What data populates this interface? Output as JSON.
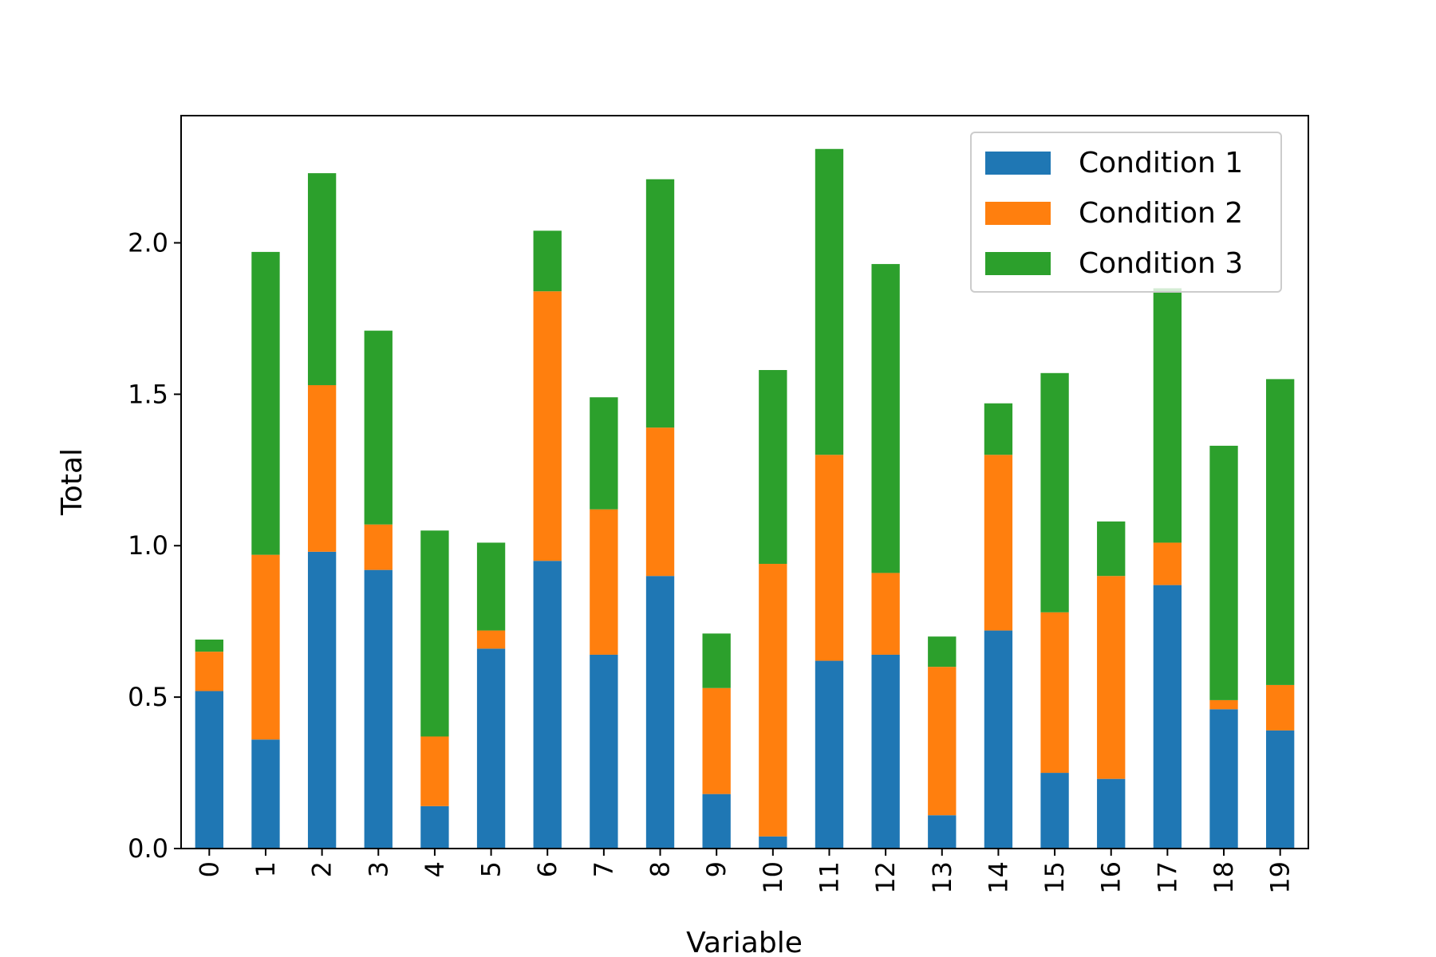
{
  "chart_data": {
    "type": "bar",
    "stacked": true,
    "title": "",
    "xlabel": "Variable",
    "ylabel": "Total",
    "ylim": [
      0,
      2.42
    ],
    "yticks": [
      0.0,
      0.5,
      1.0,
      1.5,
      2.0
    ],
    "ytick_labels": [
      "0.0",
      "0.5",
      "1.0",
      "1.5",
      "2.0"
    ],
    "categories": [
      "0",
      "1",
      "2",
      "3",
      "4",
      "5",
      "6",
      "7",
      "8",
      "9",
      "10",
      "11",
      "12",
      "13",
      "14",
      "15",
      "16",
      "17",
      "18",
      "19"
    ],
    "series": [
      {
        "name": "Condition 1",
        "color": "#1f77b4",
        "values": [
          0.52,
          0.36,
          0.98,
          0.92,
          0.14,
          0.66,
          0.95,
          0.64,
          0.9,
          0.18,
          0.04,
          0.62,
          0.64,
          0.11,
          0.72,
          0.25,
          0.23,
          0.87,
          0.46,
          0.39
        ]
      },
      {
        "name": "Condition 2",
        "color": "#ff7f0e",
        "values": [
          0.13,
          0.61,
          0.55,
          0.15,
          0.23,
          0.06,
          0.89,
          0.48,
          0.49,
          0.35,
          0.9,
          0.68,
          0.27,
          0.49,
          0.58,
          0.53,
          0.67,
          0.14,
          0.03,
          0.15
        ]
      },
      {
        "name": "Condition 3",
        "color": "#2ca02c",
        "values": [
          0.04,
          1.0,
          0.7,
          0.64,
          0.68,
          0.29,
          0.2,
          0.37,
          0.82,
          0.18,
          0.64,
          1.01,
          1.02,
          0.1,
          0.17,
          0.79,
          0.18,
          0.84,
          0.84,
          1.01
        ]
      }
    ],
    "legend": {
      "position": "top-right",
      "entries": [
        "Condition 1",
        "Condition 2",
        "Condition 3"
      ]
    },
    "grid": false
  }
}
